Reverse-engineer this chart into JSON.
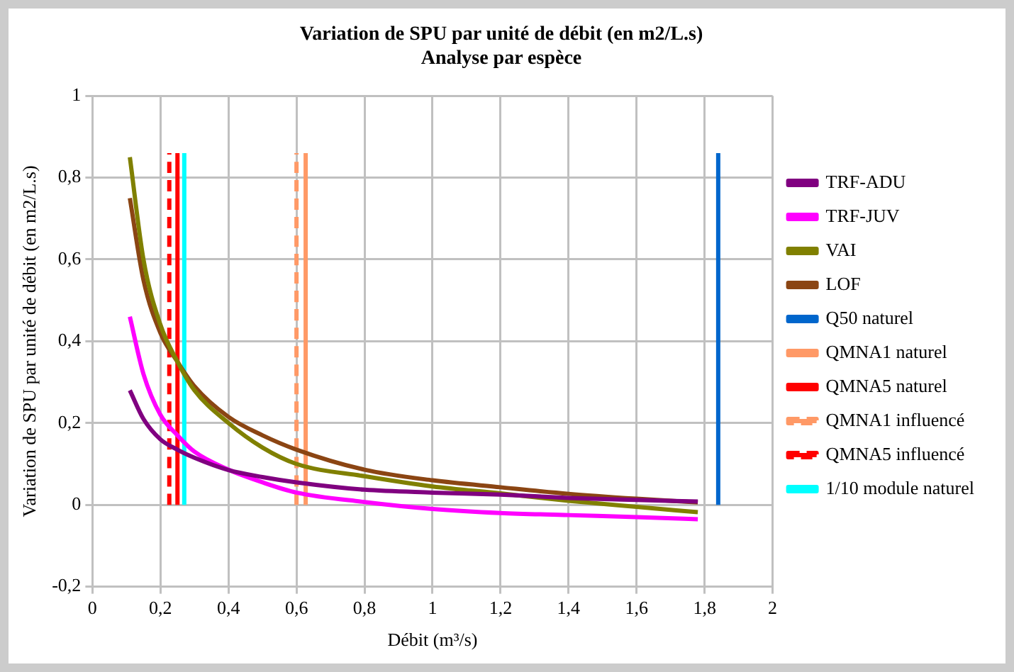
{
  "chart_data": {
    "type": "line",
    "title": "Variation de SPU par unité de débit (en m2/L.s)",
    "subtitle": "Analyse par espèce",
    "xlabel": "Débit (m³/s)",
    "ylabel": "Variation de SPU par unité de débit (en m2/L.s)",
    "x": [
      0.11,
      0.15,
      0.2,
      0.25,
      0.3,
      0.4,
      0.5,
      0.6,
      0.8,
      1.0,
      1.2,
      1.4,
      1.6,
      1.78
    ],
    "series": [
      {
        "name": "TRF-ADU",
        "color": "#800080",
        "values": [
          0.28,
          0.21,
          0.16,
          0.135,
          0.115,
          0.085,
          0.068,
          0.055,
          0.037,
          0.03,
          0.025,
          0.017,
          0.012,
          0.008
        ]
      },
      {
        "name": "TRF-JUV",
        "color": "#ff00ff",
        "values": [
          0.46,
          0.32,
          0.22,
          0.17,
          0.13,
          0.086,
          0.055,
          0.03,
          0.007,
          -0.01,
          -0.02,
          -0.025,
          -0.03,
          -0.035
        ]
      },
      {
        "name": "VAI",
        "color": "#808000",
        "values": [
          0.85,
          0.6,
          0.44,
          0.35,
          0.28,
          0.2,
          0.14,
          0.1,
          0.07,
          0.045,
          0.028,
          0.01,
          -0.005,
          -0.018
        ]
      },
      {
        "name": "LOF",
        "color": "#8b4513",
        "values": [
          0.75,
          0.55,
          0.42,
          0.35,
          0.29,
          0.215,
          0.17,
          0.135,
          0.086,
          0.06,
          0.043,
          0.027,
          0.015,
          0.006
        ]
      },
      {
        "name": "Q50 naturel",
        "color": "#0066cc",
        "x": [
          1.84,
          1.84
        ],
        "values": [
          0,
          0.86
        ]
      },
      {
        "name": "QMNA1 naturel",
        "color": "#ff9966",
        "x": [
          0.627,
          0.627
        ],
        "values": [
          0,
          0.86
        ]
      },
      {
        "name": "QMNA5 naturel",
        "color": "#ff0000",
        "x": [
          0.25,
          0.25
        ],
        "values": [
          0,
          0.86
        ]
      },
      {
        "name": "QMNA1 influencé",
        "color": "#ff9966",
        "line_style": "dashed",
        "x": [
          0.6,
          0.6
        ],
        "values": [
          0,
          0.86
        ]
      },
      {
        "name": "QMNA5 influencé",
        "color": "#ff0000",
        "line_style": "dashed",
        "x": [
          0.226,
          0.226
        ],
        "values": [
          0,
          0.86
        ]
      },
      {
        "name": "1/10 module naturel",
        "color": "#00ffff",
        "x": [
          0.27,
          0.27
        ],
        "values": [
          0,
          0.86
        ]
      }
    ],
    "xlim": [
      0,
      2
    ],
    "xticks": [
      0,
      {
        "value": 0.2,
        "label": "0,2"
      },
      {
        "value": 0.4,
        "label": "0,4"
      },
      {
        "value": 0.6,
        "label": "0,6"
      },
      {
        "value": 0.8,
        "label": "0,8"
      },
      1,
      {
        "value": 1.2,
        "label": "1,2"
      },
      {
        "value": 1.4,
        "label": "1,4"
      },
      {
        "value": 1.6,
        "label": "1,6"
      },
      {
        "value": 1.8,
        "label": "1,8"
      },
      2
    ],
    "ylim": [
      -0.2,
      1
    ],
    "yticks": [
      {
        "value": -0.2,
        "label": "-0,2"
      },
      0,
      {
        "value": 0.2,
        "label": "0,2"
      },
      {
        "value": 0.4,
        "label": "0,4"
      },
      {
        "value": 0.6,
        "label": "0,6"
      },
      {
        "value": 0.8,
        "label": "0,8"
      },
      1
    ],
    "grid": true,
    "legend": "right",
    "marker": "none",
    "line_style": "solid"
  }
}
